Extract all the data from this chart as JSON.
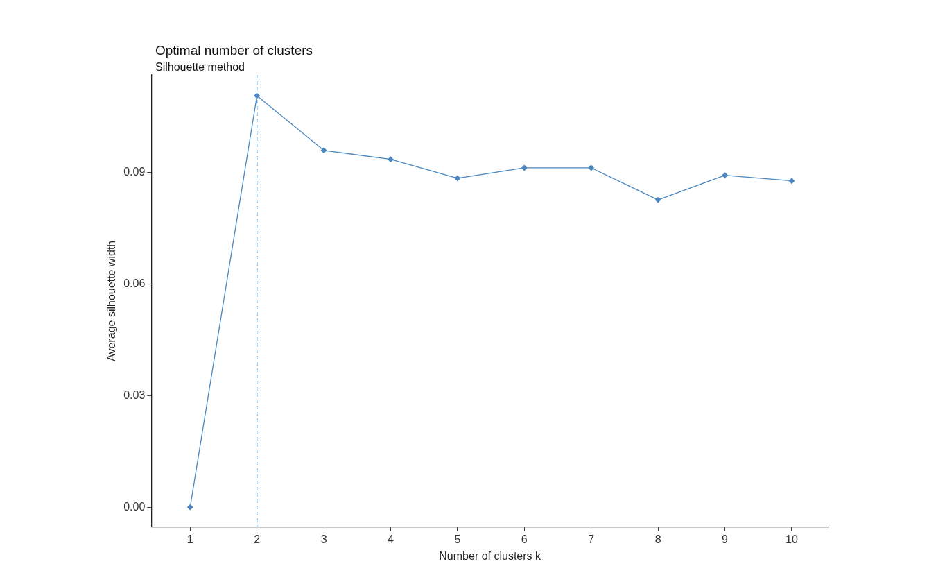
{
  "chart_data": {
    "type": "line",
    "title": "Optimal number of clusters",
    "subtitle": "Silhouette method",
    "xlabel": "Number of clusters k",
    "ylabel": "Average silhouette width",
    "x": [
      1,
      2,
      3,
      4,
      5,
      6,
      7,
      8,
      9,
      10
    ],
    "series": [
      {
        "color": "#4a86bf",
        "values": [
          0.0,
          0.1107,
          0.096,
          0.0936,
          0.0885,
          0.0913,
          0.0913,
          0.0827,
          0.0893,
          0.0878
        ]
      }
    ],
    "xlim": [
      0.42,
      10.55
    ],
    "xticks": [
      1,
      2,
      3,
      4,
      5,
      6,
      7,
      8,
      9,
      10
    ],
    "ylim": [
      -0.0053,
      0.1163
    ],
    "yticks": [
      {
        "value": 0,
        "label": "0.00"
      },
      {
        "value": 0.03,
        "label": "0.03"
      },
      {
        "value": 0.06,
        "label": "0.06"
      },
      {
        "value": 0.09,
        "label": "0.09"
      }
    ],
    "grid": false,
    "marker": "diamond",
    "line_style": "solid",
    "ref_lines": [
      {
        "axis": "x",
        "value": 2,
        "color": "#4a86bf",
        "line_style": "dashed"
      }
    ]
  }
}
